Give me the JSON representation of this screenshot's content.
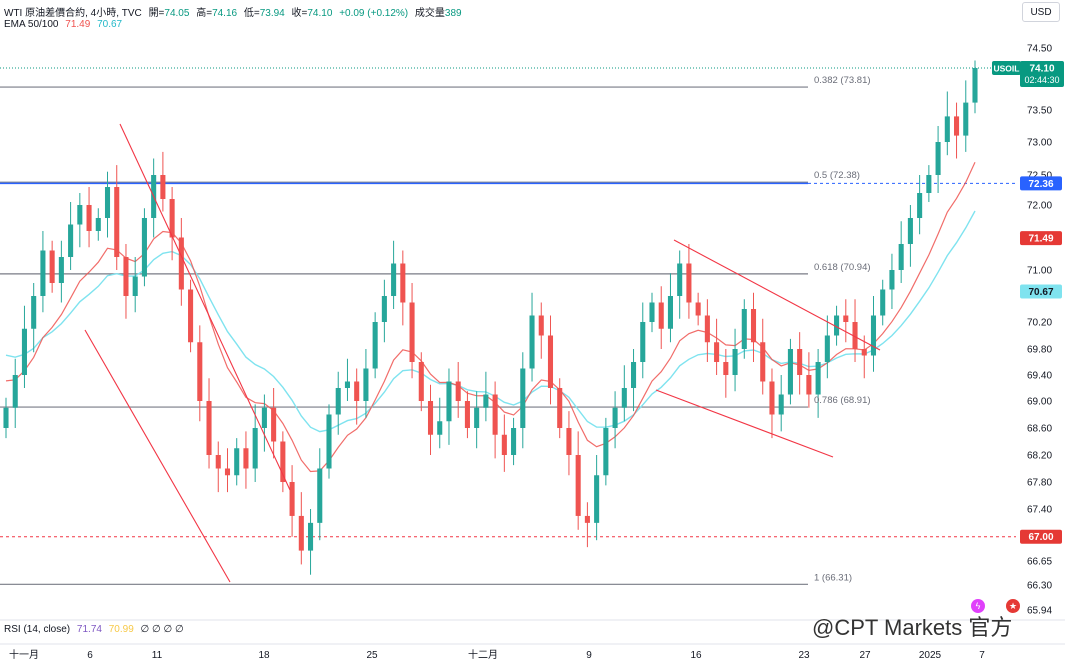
{
  "header": {
    "symbol_desc": "WTI 原油差價合約, 4小時, TVC",
    "open_label": "開=",
    "open_value": "74.05",
    "high_label": "高=",
    "high_value": "74.16",
    "low_label": "低=",
    "low_value": "73.94",
    "close_label": "收=",
    "close_value": "74.10",
    "change": "+0.09 (+0.12%)",
    "volume_label": "成交量",
    "volume_value": "389",
    "ema_label": "EMA 50/100",
    "ema50_value": "71.49",
    "ema100_value": "70.67"
  },
  "currency_button": "USD",
  "rsi": {
    "label": "RSI (14, close)",
    "value1": "71.74",
    "value2": "70.99",
    "placeholders": "∅ ∅ ∅ ∅"
  },
  "watermark": "@CPT Markets 官方",
  "colors": {
    "up": "#26a69a",
    "down": "#ef5350",
    "ema50": "#ef5350",
    "ema100": "#7fe3ef",
    "trendline": "#f23645",
    "fib_line": "#787b86",
    "blue_line": "#2962ff",
    "price_tag": "#089981"
  },
  "chart_data": {
    "type": "candlestick",
    "ylim": [
      65.94,
      74.8
    ],
    "y_ticks": [
      "74.50",
      "74.00",
      "73.50",
      "73.00",
      "72.50",
      "72.00",
      "71.00",
      "70.20",
      "69.80",
      "69.40",
      "69.00",
      "68.60",
      "68.20",
      "67.80",
      "67.40",
      "66.65",
      "66.30",
      "65.94"
    ],
    "x_ticks": [
      "十一月",
      "6",
      "11",
      "18",
      "25",
      "十二月",
      "9",
      "16",
      "23",
      "27",
      "2025",
      "7"
    ],
    "fib_levels": [
      {
        "label": "0.382 (73.81)",
        "value": 73.81
      },
      {
        "label": "0.5 (72.38)",
        "value": 72.38
      },
      {
        "label": "0.618 (70.94)",
        "value": 70.94
      },
      {
        "label": "0.786 (68.91)",
        "value": 68.91
      },
      {
        "label": "1 (66.31)",
        "value": 66.31
      }
    ],
    "horizontal_lines": [
      {
        "label": "72.36",
        "value": 72.36,
        "color": "#2962ff"
      },
      {
        "label": "67.00",
        "value": 67.0,
        "color": "#f23645"
      }
    ],
    "last_price": {
      "symbol": "USOIL",
      "value": "74.10",
      "countdown": "02:44:30"
    },
    "ema_tags": {
      "ema50": "71.49",
      "ema100": "70.67"
    },
    "closes": [
      68.9,
      69.4,
      70.1,
      70.6,
      71.3,
      70.8,
      71.2,
      71.7,
      72.0,
      71.6,
      71.8,
      72.3,
      71.2,
      70.6,
      70.9,
      71.8,
      72.5,
      72.1,
      71.5,
      70.7,
      69.9,
      69.0,
      68.2,
      68.0,
      67.9,
      68.3,
      68.0,
      68.6,
      68.9,
      68.4,
      67.8,
      67.3,
      66.8,
      67.2,
      68.0,
      68.8,
      69.2,
      69.3,
      69.0,
      69.5,
      70.2,
      70.6,
      71.1,
      70.5,
      69.6,
      69.0,
      68.5,
      68.7,
      69.3,
      69.0,
      68.6,
      68.9,
      69.1,
      68.5,
      68.2,
      68.6,
      69.5,
      70.3,
      70.0,
      69.2,
      68.6,
      68.2,
      67.3,
      67.2,
      67.9,
      68.6,
      68.9,
      69.2,
      69.6,
      70.2,
      70.5,
      70.1,
      70.6,
      71.1,
      70.5,
      70.3,
      69.9,
      69.6,
      69.4,
      69.8,
      70.4,
      69.9,
      69.3,
      68.8,
      69.1,
      69.8,
      69.4,
      69.1,
      69.6,
      70.0,
      70.3,
      70.2,
      69.8,
      69.7,
      70.3,
      70.7,
      71.0,
      71.4,
      71.8,
      72.2,
      72.5,
      73.0,
      73.4,
      73.1,
      73.6,
      74.1
    ]
  }
}
